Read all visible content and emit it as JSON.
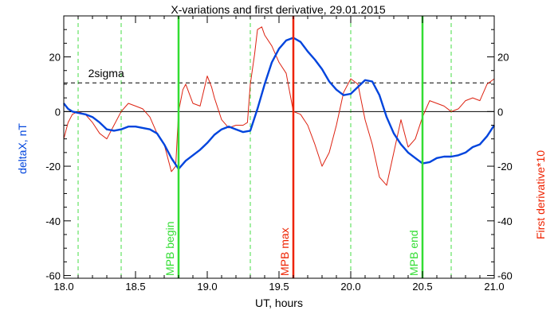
{
  "chart_data": {
    "type": "line",
    "title": "X-variations and first derivative, 29.01.2015",
    "xlabel": "UT, hours",
    "ylabel_left": "deltaX, nT",
    "ylabel_right": "First derivative*10",
    "xlim": [
      18.0,
      21.0
    ],
    "ylim": [
      -61,
      35
    ],
    "x_ticks": [
      "18.0",
      "18.5",
      "19.0",
      "19.5",
      "20.0",
      "20.5",
      "21.0"
    ],
    "y_ticks_left": [
      "20",
      "0",
      "-20",
      "-40",
      "-60"
    ],
    "y_ticks_right": [
      "20",
      "0",
      "-20",
      "-40",
      "-60"
    ],
    "x_tick_values": [
      18.0,
      18.5,
      19.0,
      19.5,
      20.0,
      20.5,
      21.0
    ],
    "y_tick_values": [
      20,
      0,
      -20,
      -40,
      -60
    ],
    "grid": false,
    "colors": {
      "deltaX": "#0044dd",
      "derivative": "#dd2211",
      "mpb": "#33dd33",
      "mpb_max": "#ee2200",
      "dashed_green": "#44dd44",
      "left_label": "#0044dd",
      "right_label": "#ee2200"
    },
    "series": [
      {
        "key": "deltaX",
        "x": [
          18.0,
          18.03,
          18.06,
          18.1,
          18.15,
          18.2,
          18.25,
          18.3,
          18.35,
          18.4,
          18.45,
          18.5,
          18.55,
          18.6,
          18.65,
          18.7,
          18.75,
          18.8,
          18.85,
          18.9,
          18.95,
          19.0,
          19.05,
          19.1,
          19.15,
          19.2,
          19.25,
          19.3,
          19.35,
          19.4,
          19.45,
          19.5,
          19.55,
          19.6,
          19.65,
          19.7,
          19.75,
          19.8,
          19.85,
          19.9,
          19.95,
          20.0,
          20.05,
          20.1,
          20.15,
          20.2,
          20.25,
          20.3,
          20.35,
          20.4,
          20.45,
          20.5,
          20.55,
          20.6,
          20.65,
          20.7,
          20.75,
          20.8,
          20.85,
          20.9,
          20.95,
          21.0
        ],
        "values": [
          3,
          1,
          0,
          -0.5,
          -1,
          -2,
          -4,
          -6.5,
          -7,
          -6.5,
          -5.5,
          -5.5,
          -6,
          -6.5,
          -8,
          -12,
          -17,
          -21,
          -18,
          -16,
          -14,
          -11.5,
          -8.5,
          -6.5,
          -5.5,
          -6.5,
          -7.5,
          -7,
          1,
          10,
          18,
          23,
          26,
          27,
          25.5,
          22,
          19,
          15.5,
          11,
          8,
          6,
          6.5,
          9,
          11.5,
          11,
          6,
          -2,
          -8,
          -12,
          -15,
          -17,
          -19,
          -18.5,
          -17,
          -16.5,
          -16.5,
          -16,
          -15,
          -13,
          -12,
          -9,
          -5
        ]
      },
      {
        "key": "derivative",
        "x": [
          18.0,
          18.03,
          18.06,
          18.1,
          18.15,
          18.2,
          18.25,
          18.3,
          18.35,
          18.4,
          18.45,
          18.5,
          18.55,
          18.6,
          18.65,
          18.7,
          18.75,
          18.78,
          18.8,
          18.83,
          18.85,
          18.9,
          18.95,
          19.0,
          19.03,
          19.05,
          19.1,
          19.15,
          19.2,
          19.25,
          19.28,
          19.3,
          19.33,
          19.35,
          19.38,
          19.4,
          19.45,
          19.5,
          19.55,
          19.6,
          19.65,
          19.7,
          19.75,
          19.8,
          19.85,
          19.9,
          19.95,
          20.0,
          20.05,
          20.1,
          20.15,
          20.2,
          20.25,
          20.3,
          20.35,
          20.4,
          20.45,
          20.5,
          20.55,
          20.6,
          20.65,
          20.7,
          20.75,
          20.8,
          20.85,
          20.9,
          20.95,
          21.0
        ],
        "values": [
          -10,
          -4,
          -1,
          0,
          -1,
          -4,
          -8,
          -10,
          -5,
          0,
          3,
          2,
          1,
          -2,
          -8,
          -12,
          -22,
          -20,
          0,
          8,
          10,
          3,
          2,
          13,
          9,
          5,
          -3,
          -6,
          -5,
          -5,
          -4,
          10,
          21,
          30,
          31,
          28,
          24,
          18,
          14,
          0,
          -1,
          -5,
          -12,
          -20,
          -15,
          -5,
          7,
          12,
          10,
          -3,
          -12,
          -24,
          -27,
          -15,
          -3,
          -13,
          -10,
          -2,
          4,
          3,
          2,
          0,
          1,
          4,
          5,
          4,
          10,
          12
        ]
      }
    ],
    "threshold": {
      "label": "2sigma",
      "value": 10.5
    },
    "zero_line": 0,
    "vertical_lines": [
      {
        "x": 18.8,
        "label": "MPB begin",
        "style": "solid",
        "color_key": "mpb"
      },
      {
        "x": 19.6,
        "label": "MPB max",
        "style": "solid",
        "color_key": "mpb_max"
      },
      {
        "x": 20.5,
        "label": "MPB end",
        "style": "solid",
        "color_key": "mpb"
      }
    ],
    "dashed_lines": [
      18.1,
      18.4,
      19.3,
      20.0,
      20.7
    ]
  }
}
